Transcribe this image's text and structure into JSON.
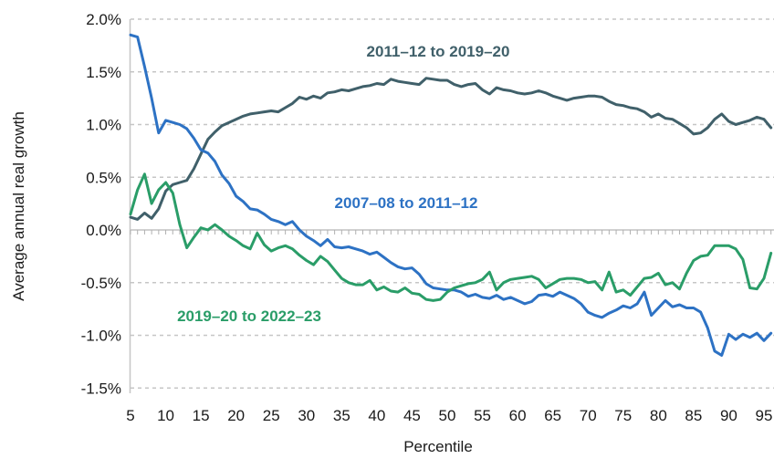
{
  "chart_data": {
    "type": "line",
    "title": "",
    "xlabel": "Percentile",
    "ylabel": "Average annual real growth",
    "x_start": 5,
    "x_end": 96,
    "x_step": 1,
    "x_ticks": [
      5,
      10,
      15,
      20,
      25,
      30,
      35,
      40,
      45,
      50,
      55,
      60,
      65,
      70,
      75,
      80,
      85,
      90,
      95
    ],
    "y_ticks": [
      {
        "label": "2.0%",
        "value": 2.0
      },
      {
        "label": "1.5%",
        "value": 1.5
      },
      {
        "label": "1.0%",
        "value": 1.0
      },
      {
        "label": "0.5%",
        "value": 0.5
      },
      {
        "label": "0.0%",
        "value": 0.0
      },
      {
        "label": "-0.5%",
        "value": -0.5
      },
      {
        "label": "-1.0%",
        "value": -1.0
      },
      {
        "label": "-1.5%",
        "value": -1.5
      }
    ],
    "ylim": [
      -1.5,
      2.0
    ],
    "grid": "horizontal-dashed",
    "zero_axis": "solid-with-minor-ticks-every-1-percentile",
    "legend": "inline-colored-labels",
    "colors": {
      "grid": "#c6c6c6",
      "zero_line": "#c2c2c2",
      "minor_tick": "#b0b0b0",
      "axis_line": "#c6c6c6",
      "text": "#1a1a1a"
    },
    "series": [
      {
        "name": "2011–12 to 2019–20",
        "color": "#40606a",
        "values": [
          0.12,
          0.1,
          0.16,
          0.11,
          0.2,
          0.37,
          0.43,
          0.45,
          0.47,
          0.58,
          0.72,
          0.86,
          0.93,
          0.99,
          1.02,
          1.05,
          1.08,
          1.1,
          1.11,
          1.12,
          1.13,
          1.12,
          1.16,
          1.2,
          1.26,
          1.24,
          1.27,
          1.25,
          1.3,
          1.31,
          1.33,
          1.32,
          1.34,
          1.36,
          1.37,
          1.39,
          1.38,
          1.43,
          1.41,
          1.4,
          1.39,
          1.38,
          1.44,
          1.43,
          1.42,
          1.42,
          1.38,
          1.36,
          1.38,
          1.39,
          1.33,
          1.29,
          1.35,
          1.33,
          1.32,
          1.3,
          1.29,
          1.3,
          1.32,
          1.3,
          1.27,
          1.25,
          1.23,
          1.25,
          1.26,
          1.27,
          1.27,
          1.26,
          1.22,
          1.19,
          1.18,
          1.16,
          1.15,
          1.12,
          1.07,
          1.1,
          1.06,
          1.05,
          1.01,
          0.97,
          0.91,
          0.92,
          0.97,
          1.05,
          1.1,
          1.03,
          1.0,
          1.02,
          1.04,
          1.07,
          1.05,
          0.97
        ]
      },
      {
        "name": "2007–08 to 2011–12",
        "color": "#2d72c4",
        "values": [
          1.85,
          1.83,
          1.55,
          1.25,
          0.92,
          1.04,
          1.02,
          1.0,
          0.96,
          0.87,
          0.76,
          0.73,
          0.65,
          0.52,
          0.44,
          0.32,
          0.27,
          0.2,
          0.19,
          0.15,
          0.1,
          0.08,
          0.05,
          0.08,
          0.0,
          -0.06,
          -0.1,
          -0.15,
          -0.09,
          -0.16,
          -0.17,
          -0.16,
          -0.18,
          -0.2,
          -0.23,
          -0.21,
          -0.26,
          -0.31,
          -0.35,
          -0.37,
          -0.36,
          -0.42,
          -0.51,
          -0.55,
          -0.56,
          -0.57,
          -0.57,
          -0.59,
          -0.63,
          -0.61,
          -0.64,
          -0.65,
          -0.62,
          -0.66,
          -0.64,
          -0.67,
          -0.7,
          -0.68,
          -0.62,
          -0.61,
          -0.63,
          -0.59,
          -0.62,
          -0.65,
          -0.7,
          -0.78,
          -0.81,
          -0.83,
          -0.79,
          -0.76,
          -0.72,
          -0.74,
          -0.7,
          -0.59,
          -0.81,
          -0.74,
          -0.67,
          -0.73,
          -0.71,
          -0.74,
          -0.74,
          -0.78,
          -0.93,
          -1.15,
          -1.19,
          -0.99,
          -1.04,
          -0.99,
          -1.02,
          -0.98,
          -1.05,
          -0.98
        ]
      },
      {
        "name": "2019–20 to 2022–23",
        "color": "#2a9d68",
        "values": [
          0.15,
          0.38,
          0.53,
          0.25,
          0.38,
          0.45,
          0.35,
          0.05,
          -0.17,
          -0.07,
          0.02,
          0.0,
          0.05,
          0.0,
          -0.06,
          -0.1,
          -0.15,
          -0.18,
          -0.03,
          -0.14,
          -0.2,
          -0.17,
          -0.15,
          -0.18,
          -0.24,
          -0.29,
          -0.33,
          -0.25,
          -0.3,
          -0.38,
          -0.46,
          -0.5,
          -0.52,
          -0.52,
          -0.48,
          -0.57,
          -0.54,
          -0.58,
          -0.59,
          -0.55,
          -0.6,
          -0.61,
          -0.66,
          -0.67,
          -0.66,
          -0.59,
          -0.55,
          -0.53,
          -0.51,
          -0.5,
          -0.47,
          -0.4,
          -0.57,
          -0.5,
          -0.47,
          -0.46,
          -0.45,
          -0.44,
          -0.47,
          -0.55,
          -0.51,
          -0.47,
          -0.46,
          -0.46,
          -0.47,
          -0.5,
          -0.49,
          -0.57,
          -0.4,
          -0.59,
          -0.57,
          -0.62,
          -0.54,
          -0.46,
          -0.45,
          -0.41,
          -0.52,
          -0.5,
          -0.56,
          -0.41,
          -0.29,
          -0.25,
          -0.24,
          -0.15,
          -0.15,
          -0.15,
          -0.18,
          -0.28,
          -0.55,
          -0.56,
          -0.46,
          -0.22
        ]
      }
    ]
  }
}
